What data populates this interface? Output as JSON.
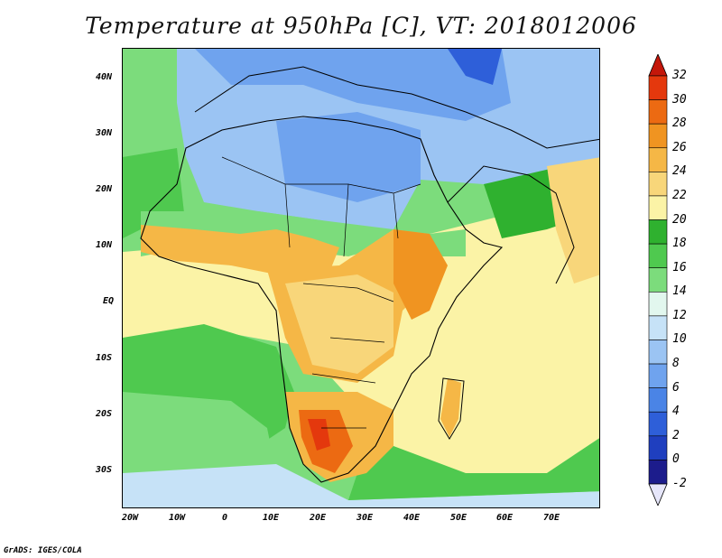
{
  "title": "Temperature at 950hPa [C], VT: 2018012006",
  "footer": "GrADS: IGES/COLA",
  "y_axis_labels": [
    "40N",
    "30N",
    "20N",
    "10N",
    "EQ",
    "10S",
    "20S",
    "30S"
  ],
  "x_axis_labels": [
    "20W",
    "10W",
    "0",
    "10E",
    "20E",
    "30E",
    "40E",
    "50E",
    "60E",
    "70E"
  ],
  "colorbar": {
    "levels": [
      "-2",
      "0",
      "2",
      "4",
      "6",
      "8",
      "10",
      "12",
      "14",
      "16",
      "18",
      "20",
      "22",
      "24",
      "26",
      "28",
      "30",
      "32"
    ],
    "colors": [
      "#e6e6fa",
      "#1c1c8c",
      "#1f3fbf",
      "#2e5fd9",
      "#4a84e6",
      "#6fa3ee",
      "#9bc4f3",
      "#c6e2f7",
      "#e2f7ee",
      "#7cdc7c",
      "#4fc94f",
      "#2fb12f",
      "#fbf3a6",
      "#f8d67a",
      "#f5b746",
      "#f09421",
      "#ec6a12",
      "#e4380d",
      "#c4170a"
    ]
  },
  "map": {
    "lat_range": [
      -37,
      45
    ],
    "lon_range": [
      -22,
      80
    ],
    "colors": {
      "ocean_warm": "#fbf3a6",
      "ocean_mid": "#4fc94f",
      "ocean_cool": "#7cdc7c",
      "cold_blue": "#6fa3ee",
      "deep_blue": "#2e5fd9",
      "warm_orange": "#f5b746",
      "hot_red": "#ec6a12"
    }
  }
}
